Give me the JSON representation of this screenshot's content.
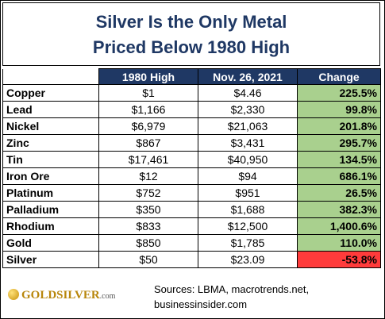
{
  "header": {
    "title_lines": [
      "Silver Is the Only Metal",
      "Priced Below 1980 High"
    ]
  },
  "table": {
    "columns": [
      "1980 High",
      "Nov. 26, 2021",
      "Change"
    ],
    "rows": [
      [
        "Copper",
        "$1",
        "$4.46",
        "225.5%"
      ],
      [
        "Lead",
        "$1,166",
        "$2,330",
        "99.8%"
      ],
      [
        "Nickel",
        "$6,979",
        "$21,063",
        "201.8%"
      ],
      [
        "Zinc",
        "$867",
        "$3,431",
        "295.7%"
      ],
      [
        "Tin",
        "$17,461",
        "$40,950",
        "134.5%"
      ],
      [
        "Iron Ore",
        "$12",
        "$94",
        "686.1%"
      ],
      [
        "Platinum",
        "$752",
        "$951",
        "26.5%"
      ],
      [
        "Palladium",
        "$350",
        "$1,688",
        "382.3%"
      ],
      [
        "Rhodium",
        "$833",
        "$12,500",
        "1,400.6%"
      ],
      [
        "Gold",
        "$850",
        "$1,785",
        "110.0%"
      ],
      [
        "Silver",
        "$50",
        "$23.09",
        "-53.8%"
      ]
    ]
  },
  "footer": {
    "logo": [
      "GOLDSILVER",
      ".com"
    ],
    "sources": [
      "Sources: LBMA, macrotrends.net,",
      "businessinsider.com"
    ]
  }
}
